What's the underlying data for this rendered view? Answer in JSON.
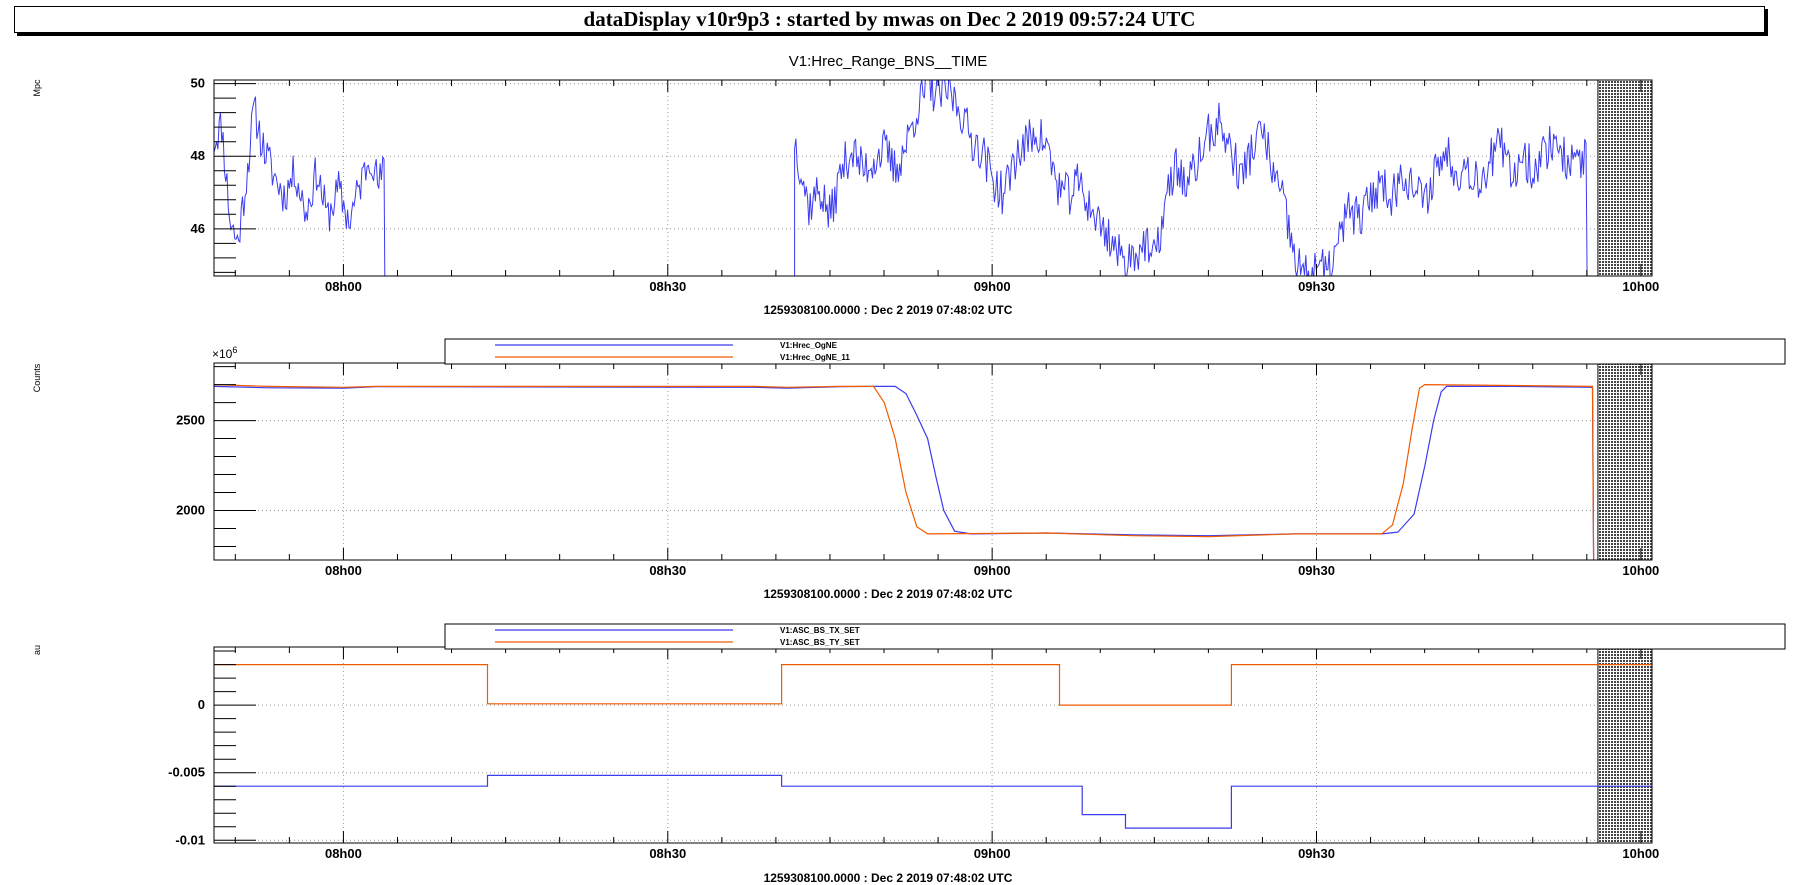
{
  "window_title": "dataDisplay v10r9p3 : started by mwas on Dec  2 2019 09:57:24 UTC",
  "colors": {
    "blue": "#3b3bef",
    "orange": "#f05a00",
    "grid": "#9a9a9a",
    "hatch": "#444444"
  },
  "chart_data": [
    {
      "type": "line",
      "title": "V1:Hrec_Range_BNS__TIME",
      "ylabel": "Mpc",
      "xlabel": "1259308100.0000 : Dec  2 2019 07:48:02 UTC",
      "exponent_label": "",
      "x_unit": "minutes since 07:48:02 UTC",
      "xlim": [
        0,
        133
      ],
      "ylim": [
        44.7,
        50.1
      ],
      "yticks": [
        46,
        48,
        50
      ],
      "ytick_labels": [
        "46",
        "48",
        "50"
      ],
      "xticks": [
        11.97,
        41.97,
        71.97,
        101.97,
        131.97
      ],
      "xtick_labels": [
        "08h00",
        "08h30",
        "09h00",
        "09h30",
        "10h00"
      ],
      "no_data_start": 128,
      "grid": true,
      "legend": [],
      "series": [
        {
          "name": "",
          "color": "blue",
          "segments": [
            {
              "t0": 0,
              "t1": 15.8,
              "anchors": [
                [
                  0,
                  48.4
                ],
                [
                  0.7,
                  48.9
                ],
                [
                  1.5,
                  46.2
                ],
                [
                  2.2,
                  45.6
                ],
                [
                  3,
                  47.4
                ],
                [
                  3.7,
                  49.3
                ],
                [
                  4.5,
                  48.3
                ],
                [
                  5.5,
                  47.5
                ],
                [
                  6.5,
                  46.9
                ],
                [
                  7.5,
                  47.6
                ],
                [
                  8.5,
                  46.4
                ],
                [
                  9.5,
                  47.6
                ],
                [
                  10.5,
                  46.3
                ],
                [
                  11.5,
                  47.1
                ],
                [
                  12.5,
                  46.2
                ],
                [
                  13.5,
                  47.2
                ],
                [
                  14.5,
                  48.1
                ],
                [
                  15.2,
                  47.2
                ],
                [
                  15.8,
                  47.7
                ]
              ],
              "noise": 0.55,
              "seed": 11,
              "drop_end": 44.7
            },
            {
              "t0": 53.7,
              "t1": 127,
              "anchors": [
                [
                  53.7,
                  48.5
                ],
                [
                  55,
                  46.6
                ],
                [
                  56,
                  47.1
                ],
                [
                  57,
                  46.3
                ],
                [
                  58,
                  47.6
                ],
                [
                  59,
                  48.2
                ],
                [
                  60,
                  47.6
                ],
                [
                  62,
                  48.2
                ],
                [
                  63,
                  47.6
                ],
                [
                  64,
                  48.3
                ],
                [
                  65,
                  49.3
                ],
                [
                  66,
                  49.9
                ],
                [
                  67,
                  49.7
                ],
                [
                  68,
                  49.8
                ],
                [
                  69,
                  49.3
                ],
                [
                  70,
                  48.5
                ],
                [
                  71,
                  48.2
                ],
                [
                  72,
                  47.4
                ],
                [
                  73,
                  46.9
                ],
                [
                  74,
                  47.9
                ],
                [
                  75,
                  48.3
                ],
                [
                  76,
                  48.7
                ],
                [
                  77,
                  48.3
                ],
                [
                  78,
                  47.2
                ],
                [
                  79,
                  46.9
                ],
                [
                  80,
                  47.3
                ],
                [
                  81,
                  46.6
                ],
                [
                  82,
                  46.1
                ],
                [
                  83,
                  45.7
                ],
                [
                  84,
                  45.1
                ],
                [
                  85,
                  45.3
                ],
                [
                  86,
                  45.6
                ],
                [
                  87,
                  45.1
                ],
                [
                  88,
                  46.7
                ],
                [
                  89,
                  47.8
                ],
                [
                  90,
                  47.1
                ],
                [
                  91,
                  47.9
                ],
                [
                  92,
                  48.6
                ],
                [
                  93,
                  48.9
                ],
                [
                  94,
                  48.2
                ],
                [
                  95,
                  47.4
                ],
                [
                  96,
                  48.2
                ],
                [
                  97,
                  48.7
                ],
                [
                  98,
                  47.5
                ],
                [
                  99,
                  46.6
                ],
                [
                  100,
                  45.1
                ],
                [
                  101,
                  44.7
                ],
                [
                  102,
                  45.1
                ],
                [
                  103,
                  44.7
                ],
                [
                  104,
                  45.6
                ],
                [
                  105,
                  46.6
                ],
                [
                  106,
                  46.2
                ],
                [
                  107,
                  46.9
                ],
                [
                  108,
                  47.3
                ],
                [
                  109,
                  46.9
                ],
                [
                  110,
                  47.6
                ],
                [
                  111,
                  47.1
                ],
                [
                  112,
                  46.7
                ],
                [
                  113,
                  47.7
                ],
                [
                  114,
                  48.1
                ],
                [
                  115,
                  47.6
                ],
                [
                  116,
                  47.7
                ],
                [
                  117,
                  47.3
                ],
                [
                  118,
                  47.9
                ],
                [
                  119,
                  48.3
                ],
                [
                  120,
                  47.4
                ],
                [
                  121,
                  48.1
                ],
                [
                  122,
                  47.6
                ],
                [
                  123,
                  48.1
                ],
                [
                  124,
                  48.5
                ],
                [
                  125,
                  47.9
                ],
                [
                  126,
                  47.8
                ],
                [
                  127,
                  48.1
                ]
              ],
              "noise": 0.6,
              "seed": 37,
              "drop_start": 44.7,
              "drop_end": 44.7
            }
          ]
        }
      ]
    },
    {
      "type": "line",
      "title": "",
      "ylabel": "Counts",
      "xlabel": "1259308100.0000 : Dec  2 2019 07:48:02 UTC",
      "exponent_label": "×10",
      "exponent_power": "6",
      "xlim": [
        0,
        133
      ],
      "ylim": [
        1725,
        2820
      ],
      "yticks": [
        2000,
        2500
      ],
      "ytick_labels": [
        "2000",
        "2500"
      ],
      "xticks": [
        11.97,
        41.97,
        71.97,
        101.97,
        131.97
      ],
      "xtick_labels": [
        "08h00",
        "08h30",
        "09h00",
        "09h30",
        "10h00"
      ],
      "no_data_start": 128,
      "grid": true,
      "legend": [
        "V1:Hrec_OgNE",
        "V1:Hrec_OgNE_11"
      ],
      "series": [
        {
          "name": "V1:Hrec_OgNE",
          "color": "blue",
          "points": [
            [
              0,
              2690
            ],
            [
              5,
              2682
            ],
            [
              12,
              2680
            ],
            [
              15,
              2688
            ],
            [
              50,
              2685
            ],
            [
              53,
              2680
            ],
            [
              58,
              2688
            ],
            [
              61,
              2690
            ],
            [
              63,
              2690
            ],
            [
              64,
              2650
            ],
            [
              65,
              2530
            ],
            [
              66,
              2400
            ],
            [
              66.8,
              2180
            ],
            [
              67.5,
              2000
            ],
            [
              68.5,
              1885
            ],
            [
              70,
              1870
            ],
            [
              77,
              1875
            ],
            [
              85,
              1865
            ],
            [
              92,
              1860
            ],
            [
              100,
              1870
            ],
            [
              108,
              1870
            ],
            [
              109.5,
              1880
            ],
            [
              111,
              1980
            ],
            [
              112,
              2250
            ],
            [
              112.8,
              2500
            ],
            [
              113.5,
              2660
            ],
            [
              114,
              2690
            ],
            [
              120,
              2690
            ],
            [
              127.5,
              2685
            ],
            [
              127.6,
              1725
            ]
          ]
        },
        {
          "name": "V1:Hrec_OgNE_11",
          "color": "orange",
          "points": [
            [
              0,
              2700
            ],
            [
              5,
              2690
            ],
            [
              12,
              2685
            ],
            [
              15,
              2690
            ],
            [
              50,
              2690
            ],
            [
              53,
              2685
            ],
            [
              58,
              2690
            ],
            [
              61,
              2690
            ],
            [
              62,
              2600
            ],
            [
              63,
              2400
            ],
            [
              64,
              2100
            ],
            [
              65,
              1910
            ],
            [
              66,
              1870
            ],
            [
              77,
              1875
            ],
            [
              85,
              1860
            ],
            [
              92,
              1855
            ],
            [
              100,
              1870
            ],
            [
              108,
              1870
            ],
            [
              109,
              1920
            ],
            [
              110,
              2150
            ],
            [
              110.8,
              2450
            ],
            [
              111.5,
              2680
            ],
            [
              112,
              2700
            ],
            [
              120,
              2695
            ],
            [
              127.5,
              2690
            ],
            [
              127.6,
              1725
            ]
          ]
        }
      ]
    },
    {
      "type": "line",
      "title": "",
      "ylabel": "au",
      "xlabel": "1259308100.0000 : Dec  2 2019 07:48:02 UTC",
      "exponent_label": "",
      "xlim": [
        0,
        133
      ],
      "ylim": [
        -0.0102,
        0.0043
      ],
      "yticks": [
        -0.01,
        -0.005,
        0
      ],
      "ytick_labels": [
        "-0.01",
        "-0.005",
        "0"
      ],
      "xticks": [
        11.97,
        41.97,
        71.97,
        101.97,
        131.97
      ],
      "xtick_labels": [
        "08h00",
        "08h30",
        "09h00",
        "09h30",
        "10h00"
      ],
      "no_data_start": 128,
      "grid": true,
      "legend": [
        "V1:ASC_BS_TX_SET",
        "V1:ASC_BS_TY_SET"
      ],
      "series": [
        {
          "name": "V1:ASC_BS_TX_SET",
          "color": "blue",
          "points": [
            [
              0,
              -0.006
            ],
            [
              25.3,
              -0.006
            ],
            [
              25.3,
              -0.0052
            ],
            [
              52.5,
              -0.0052
            ],
            [
              52.5,
              -0.006
            ],
            [
              80.3,
              -0.006
            ],
            [
              80.3,
              -0.0081
            ],
            [
              84.3,
              -0.0081
            ],
            [
              84.3,
              -0.0091
            ],
            [
              94.1,
              -0.0091
            ],
            [
              94.1,
              -0.006
            ],
            [
              133,
              -0.006
            ]
          ]
        },
        {
          "name": "V1:ASC_BS_TY_SET",
          "color": "orange",
          "points": [
            [
              0,
              0.003
            ],
            [
              25.3,
              0.003
            ],
            [
              25.3,
              0.0001
            ],
            [
              52.5,
              0.0001
            ],
            [
              52.5,
              0.003
            ],
            [
              78.2,
              0.003
            ],
            [
              78.2,
              0.0
            ],
            [
              94.1,
              0.0
            ],
            [
              94.1,
              0.003
            ],
            [
              133,
              0.003
            ]
          ]
        }
      ]
    }
  ]
}
